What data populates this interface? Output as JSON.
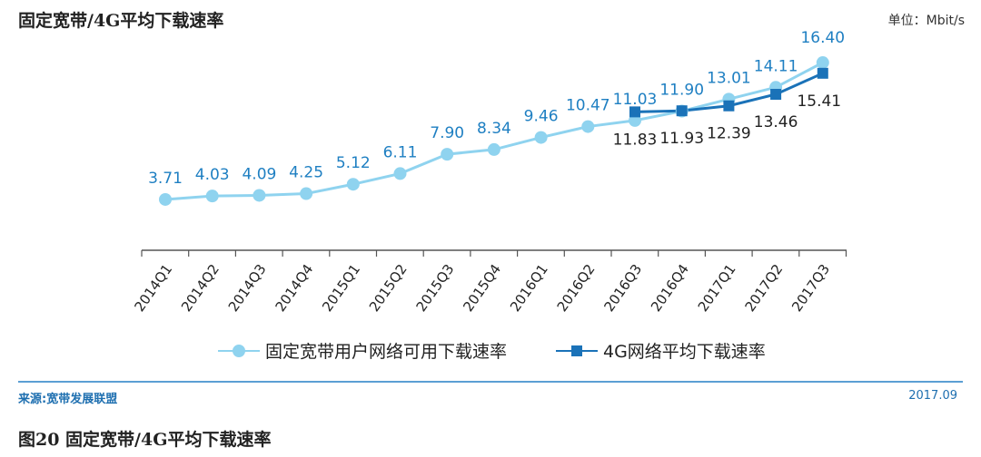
{
  "header": {
    "title": "固定宽带/4G平均下载速率",
    "unit": "单位：Mbit/s"
  },
  "footer": {
    "source": "来源:宽带发展联盟",
    "date": "2017.09",
    "caption": "图20  固定宽带/4G平均下载速率"
  },
  "colors": {
    "broadband": "#8fd3ef",
    "mobile4g": "#1a72b8",
    "label_broadband": "#1e7fc2",
    "label_4g": "#222222",
    "axis": "#555555"
  },
  "chart_data": {
    "type": "line",
    "categories": [
      "2014Q1",
      "2014Q2",
      "2014Q3",
      "2014Q4",
      "2015Q1",
      "2015Q2",
      "2015Q3",
      "2015Q4",
      "2016Q1",
      "2016Q2",
      "2016Q3",
      "2016Q4",
      "2017Q1",
      "2017Q2",
      "2017Q3"
    ],
    "series": [
      {
        "name": "固定宽带用户网络可用下载速率",
        "values": [
          3.71,
          4.03,
          4.09,
          4.25,
          5.12,
          6.11,
          7.9,
          8.34,
          9.46,
          10.47,
          11.03,
          11.9,
          13.01,
          14.11,
          16.4
        ],
        "labels": [
          "3.71",
          "4.03",
          "4.09",
          "4.25",
          "5.12",
          "6.11",
          "7.90",
          "8.34",
          "9.46",
          "10.47",
          "11.03",
          "11.90",
          "13.01",
          "14.11",
          "16.40"
        ]
      },
      {
        "name": "4G网络平均下载速率",
        "values": [
          null,
          null,
          null,
          null,
          null,
          null,
          null,
          null,
          null,
          null,
          11.83,
          11.93,
          12.39,
          13.46,
          15.41
        ],
        "labels": [
          null,
          null,
          null,
          null,
          null,
          null,
          null,
          null,
          null,
          null,
          "11.83",
          "11.93",
          "12.39",
          "13.46",
          "15.41"
        ]
      }
    ],
    "ylim": [
      -1,
      18
    ],
    "grid": false,
    "legend": "bottom-center"
  }
}
